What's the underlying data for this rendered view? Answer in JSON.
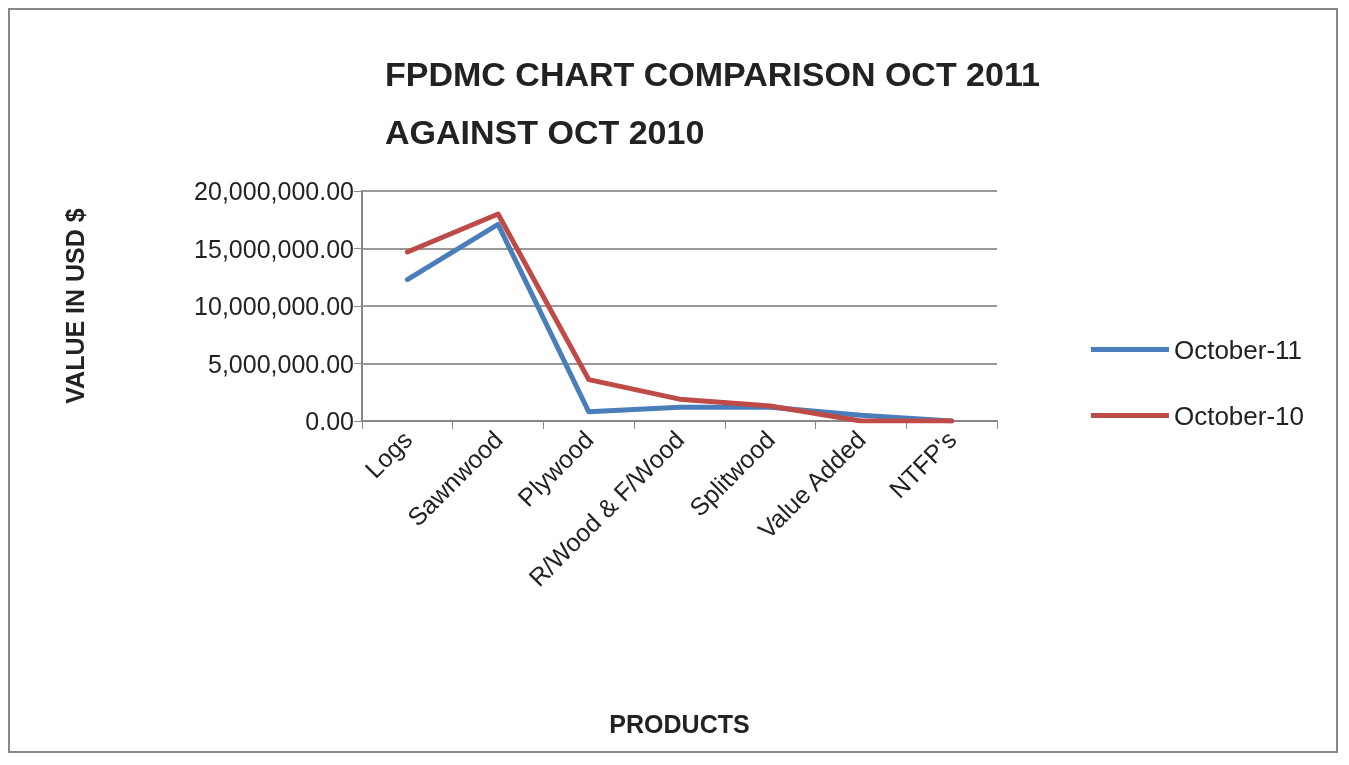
{
  "chart_data": {
    "type": "line",
    "title": "FPDMC CHART COMPARISON OCT 2011 AGAINST OCT 2010",
    "xlabel": "PRODUCTS",
    "ylabel": "VALUE IN USD $",
    "categories": [
      "Logs",
      "Sawnwood",
      "Plywood",
      "R/Wood & F/Wood",
      "Splitwood",
      "Value Added",
      "NTFP's"
    ],
    "series": [
      {
        "name": "October-11",
        "color": "#4a7ebb",
        "values": [
          12300000,
          17100000,
          800000,
          1200000,
          1200000,
          500000,
          0
        ]
      },
      {
        "name": "October-10",
        "color": "#be4b48",
        "values": [
          14700000,
          18000000,
          3600000,
          1900000,
          1300000,
          0,
          0
        ]
      }
    ],
    "ylim": [
      0,
      20000000
    ],
    "yticks": [
      {
        "value": 0,
        "label": "0.00"
      },
      {
        "value": 5000000,
        "label": "5,000,000.00"
      },
      {
        "value": 10000000,
        "label": "10,000,000.00"
      },
      {
        "value": 15000000,
        "label": "15,000,000.00"
      },
      {
        "value": 20000000,
        "label": "20,000,000.00"
      }
    ],
    "grid": "y",
    "legend": "right",
    "marker": "none",
    "line_style": "solid"
  }
}
